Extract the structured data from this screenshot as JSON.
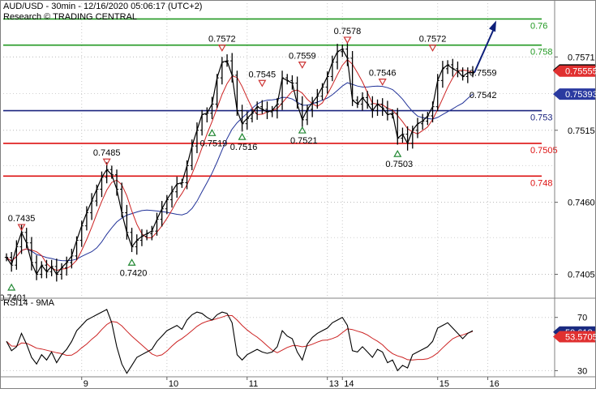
{
  "header": {
    "title": "AUD/USD - 30min - 12/16/2020 05:06:17 (UTC+2)",
    "research": "Research © TRADING CENTRAL"
  },
  "rsi_panel": {
    "title": "RSI14 - 9MA"
  },
  "colors": {
    "price": "#000000",
    "ma_fast": "#cc2222",
    "ma_slow": "#223399",
    "resistance": "#229922",
    "pivot": "#1a237e",
    "support": "#dd1111",
    "arrow": "#0d1f7a",
    "up_marker": "#228833",
    "down_marker": "#cc3333"
  },
  "chart_data": [
    {
      "type": "line",
      "series": [
        {
          "values": [
            0.7418,
            0.7412,
            0.7426,
            0.7437,
            0.7429,
            0.7414,
            0.7405,
            0.7412,
            0.7407,
            0.7411,
            0.7405,
            0.741,
            0.7414,
            0.7419,
            0.7431,
            0.7442,
            0.7452,
            0.7461,
            0.747,
            0.7479,
            0.7485,
            0.7481,
            0.747,
            0.7452,
            0.7437,
            0.7426,
            0.7431,
            0.7434,
            0.7436,
            0.7438,
            0.7447,
            0.7455,
            0.7462,
            0.7468,
            0.7474,
            0.7475,
            0.7488,
            0.7503,
            0.7515,
            0.7527,
            0.7528,
            0.7535,
            0.7555,
            0.7567,
            0.7568,
            0.7557,
            0.753,
            0.752,
            0.7524,
            0.7528,
            0.7533,
            0.7531,
            0.7529,
            0.753,
            0.7535,
            0.7555,
            0.7553,
            0.7551,
            0.7535,
            0.7523,
            0.7531,
            0.7536,
            0.7541,
            0.7548,
            0.7556,
            0.7567,
            0.7575,
            0.7577,
            0.757,
            0.7538,
            0.7535,
            0.754,
            0.7535,
            0.753,
            0.7535,
            0.7532,
            0.7527,
            0.7528,
            0.7509,
            0.7512,
            0.7505,
            0.7515,
            0.752,
            0.7522,
            0.7526,
            0.7533,
            0.7553,
            0.7562,
            0.7565,
            0.7562,
            0.756,
            0.7556,
            0.7559,
            0.7559
          ]
        }
      ],
      "xaxis": {
        "tick_labels": [
          "9",
          "10",
          "11",
          "13",
          "14",
          "15",
          "16"
        ]
      },
      "yaxis": {
        "tick_labels": [
          "0.7405",
          "0.7460",
          "0.7515",
          "0.7571"
        ],
        "ylim": [
          0.7388,
          0.7612
        ],
        "current_price": "0.75589",
        "ma_fast_value": "0.75555",
        "ma_slow_value": "0.75393"
      },
      "levels": [
        {
          "label": "0.76",
          "value": 0.76,
          "role": "resistance"
        },
        {
          "label": "0.758",
          "value": 0.758,
          "role": "resistance"
        },
        {
          "label": "0.753",
          "value": 0.753,
          "role": "pivot"
        },
        {
          "label": "0.7505",
          "value": 0.7505,
          "role": "support"
        },
        {
          "label": "0.748",
          "value": 0.748,
          "role": "support"
        }
      ],
      "annotations": [
        {
          "label": "0.7435",
          "x": 3,
          "value": 0.7435,
          "kind": "high"
        },
        {
          "label": "0.7401",
          "x": 1,
          "value": 0.7401,
          "kind": "low"
        },
        {
          "label": "0.7485",
          "x": 20,
          "value": 0.7485,
          "kind": "high"
        },
        {
          "label": "0.7420",
          "x": 25,
          "value": 0.742,
          "kind": "low"
        },
        {
          "label": "0.7572",
          "x": 43,
          "value": 0.7572,
          "kind": "high"
        },
        {
          "label": "0.7519",
          "x": 41,
          "value": 0.7519,
          "kind": "low"
        },
        {
          "label": "0.7516",
          "x": 47,
          "value": 0.7516,
          "kind": "low"
        },
        {
          "label": "0.7545",
          "x": 51,
          "value": 0.7545,
          "kind": "high"
        },
        {
          "label": "0.7559",
          "x": 59,
          "value": 0.7559,
          "kind": "high"
        },
        {
          "label": "0.7521",
          "x": 59,
          "value": 0.7521,
          "kind": "low"
        },
        {
          "label": "0.7578",
          "x": 68,
          "value": 0.7578,
          "kind": "high"
        },
        {
          "label": "0.7546",
          "x": 75,
          "value": 0.7546,
          "kind": "high"
        },
        {
          "label": "0.7503",
          "x": 78,
          "value": 0.7503,
          "kind": "low"
        },
        {
          "label": "0.7572",
          "x": 85,
          "value": 0.7572,
          "kind": "high"
        },
        {
          "label": "0.7559",
          "x": 92,
          "value": 0.7559,
          "kind": "plain"
        },
        {
          "label": "0.7542",
          "x": 92,
          "value": 0.7542,
          "kind": "plain"
        }
      ]
    },
    {
      "type": "line",
      "series": [
        {
          "values": [
            52,
            45,
            48,
            58,
            50,
            40,
            35,
            42,
            38,
            44,
            36,
            42,
            46,
            52,
            60,
            64,
            68,
            70,
            72,
            74,
            76,
            66,
            48,
            35,
            28,
            34,
            40,
            42,
            44,
            46,
            52,
            56,
            60,
            62,
            64,
            61,
            68,
            72,
            74,
            73,
            70,
            68,
            72,
            74,
            73,
            66,
            42,
            38,
            42,
            44,
            46,
            44,
            43,
            44,
            48,
            60,
            56,
            54,
            44,
            38,
            50,
            55,
            58,
            60,
            62,
            66,
            68,
            70,
            64,
            45,
            44,
            48,
            44,
            40,
            46,
            44,
            36,
            38,
            30,
            34,
            32,
            42,
            44,
            46,
            48,
            52,
            62,
            64,
            66,
            62,
            58,
            54,
            58,
            60
          ]
        }
      ],
      "xaxis": {
        "tick_labels": [
          "9",
          "10",
          "11",
          "13",
          "14",
          "15",
          "16"
        ]
      },
      "yaxis": {
        "tick_labels": [
          "70",
          "30"
        ],
        "ylim": [
          26,
          82
        ],
        "rsi_value": "59.618",
        "ma_value": "53.5705"
      }
    }
  ]
}
